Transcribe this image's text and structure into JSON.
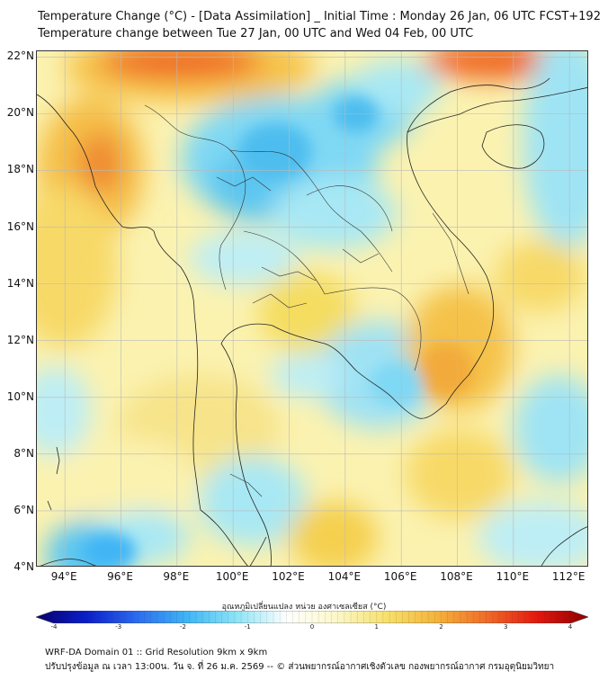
{
  "header": {
    "title": "Temperature Change (°C) - [Data Assimilation] _ Initial Time : Monday 26 Jan, 06 UTC FCST+192",
    "subtitle": "Temperature change between Tue 27 Jan, 00 UTC and Wed 04 Feb, 00 UTC"
  },
  "map": {
    "lat_labels": [
      "22°N",
      "20°N",
      "18°N",
      "16°N",
      "14°N",
      "12°N",
      "10°N",
      "8°N",
      "6°N",
      "4°N"
    ],
    "lon_labels": [
      "94°E",
      "96°E",
      "98°E",
      "100°E",
      "102°E",
      "104°E",
      "106°E",
      "108°E",
      "110°E",
      "112°E"
    ],
    "lat_values": [
      22,
      20,
      18,
      16,
      14,
      12,
      10,
      8,
      6,
      4
    ],
    "lon_values": [
      94,
      96,
      98,
      100,
      102,
      104,
      106,
      108,
      110,
      112
    ],
    "lat_range": [
      4,
      22.2
    ],
    "lon_range": [
      93,
      112.7
    ]
  },
  "colorbar": {
    "title": "อุณหภูมิเปลี่ยนแปลง หน่วย องศาเซลเซียส (°C)",
    "tick_labels": [
      "-4",
      "-3",
      "-2",
      "-1",
      "0",
      "1",
      "2",
      "3",
      "4"
    ],
    "range": [
      -4,
      4
    ],
    "colors": [
      "#08006e",
      "#0a1ec8",
      "#2b6bf0",
      "#3fb5f5",
      "#8ee4f6",
      "#ffffff",
      "#fbf7c8",
      "#f7e06a",
      "#f4b23a",
      "#ef6a28",
      "#e4160e",
      "#8c0000"
    ]
  },
  "footer": {
    "line1": "WRF-DA Domain 01 :: Grid Resolution 9km x 9km",
    "line2": "ปรับปรุงข้อมูล ณ เวลา 13:00น. วัน จ. ที่ 26 ม.ค. 2569 -- © ส่วนพยากรณ์อากาศเชิงตัวเลข กองพยากรณ์อากาศ กรมอุตุนิยมวิทยา"
  }
}
